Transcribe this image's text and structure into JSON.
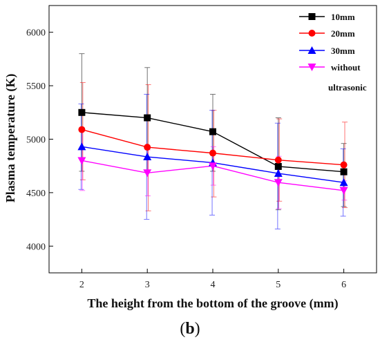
{
  "panel_label": {
    "open": "(",
    "letter": "b",
    "close": ")"
  },
  "chart_data": {
    "type": "line",
    "xlabel": "The height from the bottom of the groove (mm)",
    "ylabel": "Plasma temperature (K)",
    "x": [
      2,
      3,
      4,
      5,
      6
    ],
    "xlim": [
      1.5,
      6.5
    ],
    "ylim": [
      3750,
      6250
    ],
    "xticks": [
      2,
      3,
      4,
      5,
      6
    ],
    "yticks": [
      4000,
      4500,
      5000,
      5500,
      6000
    ],
    "legend_position": "top-right",
    "grid": false,
    "series": [
      {
        "name": "10mm",
        "color": "#000000",
        "marker": "square",
        "values": [
          5250,
          5200,
          5070,
          4745,
          4695
        ],
        "err_low": [
          4700,
          4700,
          4700,
          4340,
          4370
        ],
        "err_high": [
          5800,
          5670,
          5420,
          5200,
          4960
        ]
      },
      {
        "name": "20mm",
        "color": "#ff0000",
        "marker": "circle",
        "values": [
          5090,
          4925,
          4870,
          4805,
          4760
        ],
        "err_low": [
          4620,
          4330,
          4460,
          4420,
          4360
        ],
        "err_high": [
          5530,
          5510,
          5270,
          5190,
          5160
        ]
      },
      {
        "name": "30mm",
        "color": "#0000ff",
        "marker": "triangle-up",
        "values": [
          4930,
          4835,
          4780,
          4680,
          4595
        ],
        "err_low": [
          4530,
          4250,
          4290,
          4160,
          4280
        ],
        "err_high": [
          5330,
          5420,
          5270,
          5150,
          4910
        ]
      },
      {
        "name": "without ultrasonic",
        "legend_lines": [
          "without",
          "ultrasonic"
        ],
        "color": "#ff00ff",
        "marker": "triangle-down",
        "values": [
          4800,
          4685,
          4750,
          4595,
          4520
        ],
        "err_low": [
          4520,
          4470,
          4570,
          4350,
          4430
        ],
        "err_high": [
          5080,
          4900,
          4930,
          4840,
          4610
        ]
      }
    ]
  }
}
